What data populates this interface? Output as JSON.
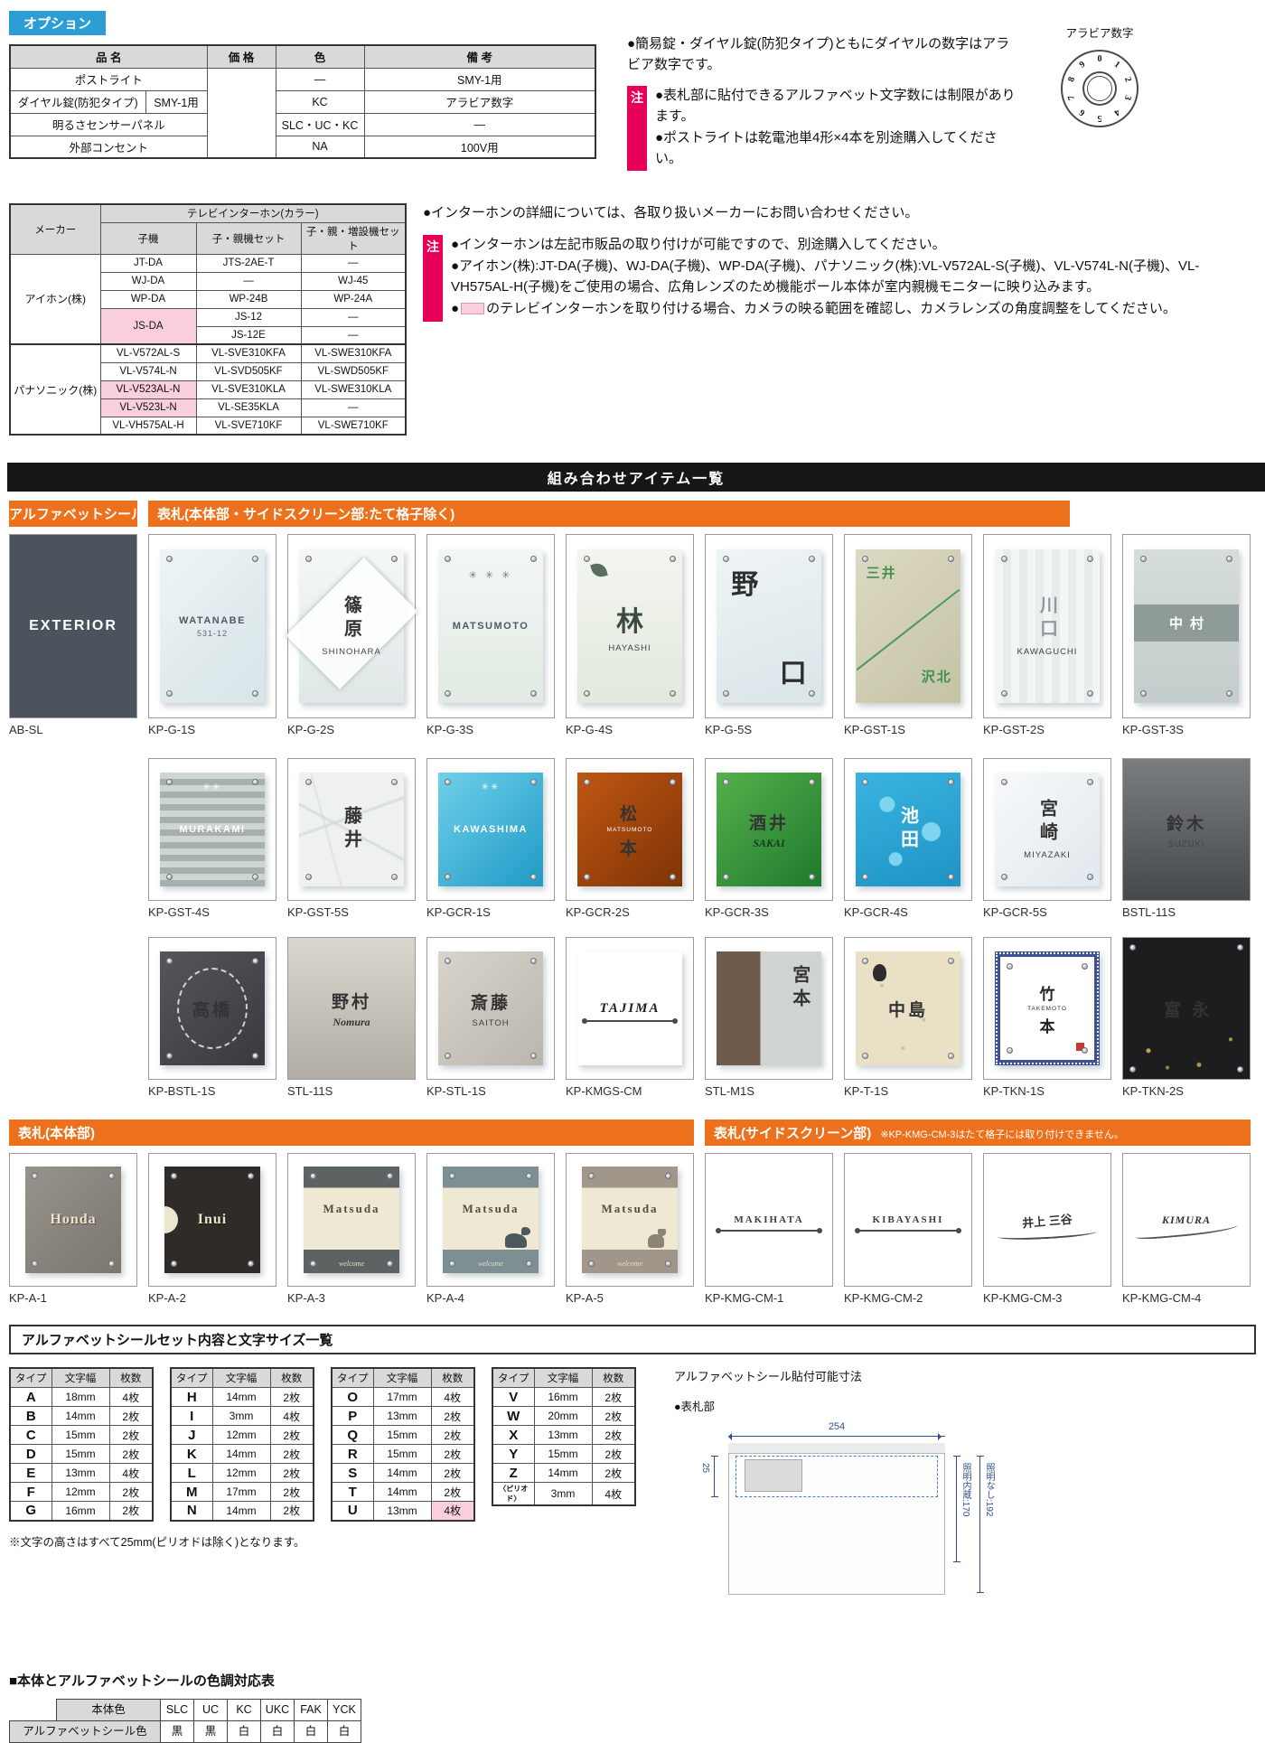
{
  "options": {
    "tag": "オプション",
    "table": {
      "headers": [
        {
          "t": "品 名",
          "cs": 2
        },
        {
          "t": "価 格"
        },
        {
          "t": "色"
        },
        {
          "t": "備 考"
        }
      ],
      "rows": [
        [
          {
            "t": "ポストライト",
            "cs": 2
          },
          {
            "t": "",
            "rs": 4
          },
          {
            "t": "―"
          },
          {
            "t": "SMY-1用"
          }
        ],
        [
          {
            "t": "ダイヤル錠(防犯タイプ)"
          },
          {
            "t": "SMY-1用"
          },
          {
            "t": "KC"
          },
          {
            "t": "アラビア数字"
          }
        ],
        [
          {
            "t": "明るさセンサーパネル",
            "cs": 2
          },
          {
            "t": "SLC・UC・KC"
          },
          {
            "t": "―"
          }
        ],
        [
          {
            "t": "外部コンセント",
            "cs": 2
          },
          {
            "t": "NA"
          },
          {
            "t": "100V用"
          }
        ]
      ]
    },
    "note1": "●簡易錠・ダイヤル錠(防犯タイプ)ともにダイヤルの数字はアラビア数字です。",
    "badge": "注",
    "notes": [
      {
        "text": "●表札部に貼付できるアルファベット文字数には制限があります。"
      },
      {
        "text": "●ポストライトは乾電池単4形×4本を別途購入してください。"
      }
    ],
    "dial_label": "アラビア数字",
    "dial_digits": [
      "0",
      "1",
      "2",
      "3",
      "4",
      "5",
      "6",
      "7",
      "8",
      "9"
    ]
  },
  "intercom": {
    "maker_header": "メーカー",
    "group_header": "テレビインターホン(カラー)",
    "sub_headers": [
      "子機",
      "子・親機セット",
      "子・親・増設機セット"
    ],
    "rows": [
      [
        {
          "t": "アイホン(株)",
          "rs": 5,
          "cls": "mkr"
        },
        {
          "t": "JT-DA"
        },
        {
          "t": "JTS-2AE-T"
        },
        {
          "t": "―"
        }
      ],
      [
        {
          "t": "WJ-DA"
        },
        {
          "t": "―"
        },
        {
          "t": "WJ-45"
        }
      ],
      [
        {
          "t": "WP-DA"
        },
        {
          "t": "WP-24B"
        },
        {
          "t": "WP-24A"
        }
      ],
      [
        {
          "t": "JS-DA",
          "rs": 2,
          "pink": true
        },
        {
          "t": "JS-12"
        },
        {
          "t": "―"
        }
      ],
      [
        {
          "t": "JS-12E"
        },
        {
          "t": "―"
        }
      ],
      [
        {
          "t": "パナソニック(株)",
          "rs": 5,
          "cls": "mkr",
          "sep": true
        },
        {
          "t": "VL-V572AL-S"
        },
        {
          "t": "VL-SVE310KFA"
        },
        {
          "t": "VL-SWE310KFA"
        }
      ],
      [
        {
          "t": "VL-V574L-N"
        },
        {
          "t": "VL-SVD505KF"
        },
        {
          "t": "VL-SWD505KF"
        }
      ],
      [
        {
          "t": "VL-V523AL-N",
          "pink": true
        },
        {
          "t": "VL-SVE310KLA"
        },
        {
          "t": "VL-SWE310KLA"
        }
      ],
      [
        {
          "t": "VL-V523L-N",
          "pink": true
        },
        {
          "t": "VL-SE35KLA"
        },
        {
          "t": "―"
        }
      ],
      [
        {
          "t": "VL-VH575AL-H"
        },
        {
          "t": "VL-SVE710KF"
        },
        {
          "t": "VL-SWE710KF"
        }
      ]
    ],
    "top_note": "●インターホンの詳細については、各取り扱いメーカーにお問い合わせください。",
    "badge": "注",
    "notes": [
      {
        "text": "●インターホンは左記市販品の取り付けが可能ですので、別途購入してください。"
      },
      {
        "text": "●アイホン(株):JT-DA(子機)、WJ-DA(子機)、WP-DA(子機)、パナソニック(株):VL-V572AL-S(子機)、VL-V574L-N(子機)、VL-VH575AL-H(子機)をご使用の場合、広角レンズのため機能ポール本体が室内親機モニターに映り込みます。"
      },
      {
        "bullet": "●",
        "swatch": true,
        "text": "のテレビインターホンを取り付ける場合、カメラの映る範囲を確認し、カメラレンズの角度調整をしてください。"
      }
    ]
  },
  "combo": {
    "banner": "組み合わせアイテム一覧",
    "seal_tag": "アルファベットシール",
    "plate_tag": "表札(本体部・サイドスクリーン部:たて格子除く)",
    "row1": [
      {
        "code": "AB-SL",
        "cls": "p-absl",
        "flat": true,
        "pins": 0,
        "lines": [
          {
            "t": "EXTERIOR",
            "c": "absl"
          }
        ]
      },
      {
        "code": "KP-G-1S",
        "cls": "p-g1",
        "pins": 4,
        "lines": [
          {
            "t": "WATANABE",
            "c": "nm"
          },
          {
            "t": "531-12",
            "c": "nm-sub"
          }
        ]
      },
      {
        "code": "KP-G-2S",
        "cls": "p-g2",
        "pins": 2,
        "deco": {
          "n": "diamond-pattern-icon",
          "cls": "deco-diamond"
        },
        "lines": [
          {
            "t": "篠原",
            "c": "nm-v c-dark"
          },
          {
            "t": "SHINOHARA",
            "c": "nm-sub2"
          }
        ]
      },
      {
        "code": "KP-G-3S",
        "cls": "p-g3",
        "pins": 4,
        "deco": {
          "n": "stars-motif-icon",
          "cls": "deco-stars",
          "g": "✳ ✳ ✳"
        },
        "lines": [
          {
            "t": "MATSUMOTO",
            "c": "nm"
          }
        ]
      },
      {
        "code": "KP-G-4S",
        "cls": "p-g4",
        "pins": 4,
        "deco": {
          "n": "leaf-motif-icon",
          "cls": "deco-leaf"
        },
        "lines": [
          {
            "t": "林",
            "c": "kanji-lg"
          },
          {
            "t": "HAYASHI",
            "c": "nm-sub2"
          }
        ]
      },
      {
        "code": "KP-G-5S",
        "cls": "p-g5",
        "pins": 4,
        "lines": [
          {
            "t": "野",
            "c": "kanji-lg abs-tl"
          },
          {
            "t": "口",
            "c": "kanji-lg abs-br"
          }
        ]
      },
      {
        "code": "KP-GST-1S",
        "cls": "p-gst1",
        "pins": 2,
        "deco": {
          "n": "diagonal-line",
          "cls": "deco-diag"
        },
        "lines": [
          {
            "t": "三井",
            "c": "green-name g-top"
          },
          {
            "t": "沢北",
            "c": "green-name g-bot"
          }
        ]
      },
      {
        "code": "KP-GST-2S",
        "cls": "p-gst2",
        "pins": 4,
        "lines": [
          {
            "t": "川口",
            "c": "nm-v c-gray"
          },
          {
            "t": "KAWAGUCHI",
            "c": "nm-sub2"
          }
        ]
      },
      {
        "code": "KP-GST-3S",
        "cls": "p-gst3",
        "pins": 4,
        "lines": [
          {
            "t": "中村",
            "c": "band-text"
          }
        ]
      }
    ],
    "row2": [
      {
        "code": "KP-GST-4S",
        "cls": "p-gst4",
        "pins": 4,
        "deco": {
          "n": "stars-motif-icon",
          "cls": "deco-stars-sm",
          "g": "✳✳"
        },
        "lines": [
          {
            "t": "MURAKAMI",
            "c": "nm c-white"
          }
        ]
      },
      {
        "code": "KP-GST-5S",
        "cls": "p-gst5",
        "pins": 4,
        "lines": [
          {
            "t": "藤井",
            "c": "nm-v c-dark"
          }
        ]
      },
      {
        "code": "KP-GCR-1S",
        "cls": "p-gcr1",
        "pins": 4,
        "deco": {
          "n": "stars-motif-icon",
          "cls": "deco-stars-sm",
          "g": "✳✳"
        },
        "lines": [
          {
            "t": "KAWASHIMA",
            "c": "nm c-white"
          }
        ]
      },
      {
        "code": "KP-GCR-2S",
        "cls": "p-gcr2",
        "pins": 4,
        "lines": [
          {
            "t": "松",
            "c": "kanji-md c-white"
          },
          {
            "t": "MATSUMOTO",
            "c": "nm-tiny c-white"
          },
          {
            "t": "本",
            "c": "kanji-md c-white"
          }
        ]
      },
      {
        "code": "KP-GCR-3S",
        "cls": "p-gcr3",
        "pins": 4,
        "lines": [
          {
            "t": "酒井",
            "c": "kanji-md c-deepgreen"
          },
          {
            "t": "SAKAI",
            "c": "script-sm c-deepgreen"
          }
        ]
      },
      {
        "code": "KP-GCR-4S",
        "cls": "p-gcr4",
        "pins": 4,
        "lines": [
          {
            "t": "池田",
            "c": "nm-v c-white"
          }
        ]
      },
      {
        "code": "KP-GCR-5S",
        "cls": "p-gcr5",
        "pins": 4,
        "lines": [
          {
            "t": "宮崎",
            "c": "nm-v c-dark"
          },
          {
            "t": "MIYAZAKI",
            "c": "nm-sub2"
          }
        ]
      },
      {
        "code": "BSTL-11S",
        "cls": "p-bstl11",
        "flat": true,
        "pins": 0,
        "lines": [
          {
            "t": "鈴木",
            "c": "kanji-md c-steel"
          },
          {
            "t": "SUZUKI",
            "c": "nm-sub2 c-steel"
          }
        ]
      }
    ],
    "row3": [
      {
        "code": "KP-BSTL-1S",
        "cls": "p-bstl1",
        "pins": 4,
        "deco": {
          "n": "wreath-motif-icon",
          "cls": "deco-wreath"
        },
        "lines": [
          {
            "t": "高橋",
            "c": "kanji-md c-white z1"
          }
        ]
      },
      {
        "code": "STL-11S",
        "cls": "p-stl11",
        "flat": true,
        "pins": 0,
        "lines": [
          {
            "t": "野村",
            "c": "kanji-md c-dark"
          },
          {
            "t": "Nomura",
            "c": "script-sm c-dark"
          }
        ]
      },
      {
        "code": "KP-STL-1S",
        "cls": "p-stl1",
        "pins": 4,
        "lines": [
          {
            "t": "斎藤",
            "c": "kanji-md c-dark"
          },
          {
            "t": "SAITOH",
            "c": "nm-sub2"
          }
        ]
      },
      {
        "code": "KP-KMGS-CM",
        "cls": "p-kmgs",
        "pins": 0,
        "deco": {
          "n": "iron-bar",
          "cls": "deco-bar"
        },
        "lines": [
          {
            "t": "TAJIMA",
            "c": "iron-name"
          }
        ]
      },
      {
        "code": "STL-M1S",
        "cls": "p-stlm1",
        "pins": 0,
        "lines": [
          {
            "t": "宮本",
            "c": "nm-v c-dark pos-right"
          }
        ]
      },
      {
        "code": "KP-T-1S",
        "cls": "p-t1",
        "pins": 4,
        "deco": {
          "n": "owl-motif-icon",
          "cls": "deco-owl"
        },
        "lines": [
          {
            "t": "中島",
            "c": "kanji-md c-dark"
          }
        ]
      },
      {
        "code": "KP-TKN-1S",
        "cls": "p-tkn1",
        "pins": 4,
        "deco": {
          "n": "seal-stamp-icon",
          "cls": "deco-seal"
        },
        "lines": [
          {
            "t": "竹",
            "c": "kanji-sm z1"
          },
          {
            "t": "TAKEMOTO",
            "c": "nm-tiny c-dark z1"
          },
          {
            "t": "本",
            "c": "kanji-sm z1"
          }
        ]
      },
      {
        "code": "KP-TKN-2S",
        "cls": "p-tkn2",
        "flat": true,
        "pins": 4,
        "deco": {
          "n": "gold-speckles",
          "cls": "deco-gold"
        },
        "lines": [
          {
            "t": "富永",
            "c": "kanji-md c-white sp-wide"
          }
        ]
      }
    ]
  },
  "plates2": {
    "body_tag": "表札(本体部)",
    "side_tag": "表札(サイドスクリーン部)",
    "side_note": "※KP-KMG-CM-3はたて格子には取り付けできません。",
    "row4": [
      {
        "code": "KP-A-1",
        "cls": "p-a1",
        "pins": 4,
        "lines": [
          {
            "t": "Honda",
            "c": "serif-name c-cream"
          }
        ]
      },
      {
        "code": "KP-A-2",
        "cls": "p-a2",
        "pins": 4,
        "deco": {
          "n": "half-moon-motif",
          "cls": "deco-half"
        },
        "lines": [
          {
            "t": "Inui",
            "c": "serif-name c-cream"
          }
        ]
      },
      {
        "code": "KP-A-3",
        "cls": "p-a3",
        "pins": 4,
        "lines": [
          {
            "t": "Matsuda",
            "c": "band-name"
          },
          {
            "t": "welcome",
            "c": "welcome-script"
          }
        ]
      },
      {
        "code": "KP-A-4",
        "cls": "p-a4",
        "pins": 4,
        "deco": {
          "n": "dog-silhouette-icon",
          "cls": "sil-dog"
        },
        "lines": [
          {
            "t": "Matsuda",
            "c": "band-name"
          },
          {
            "t": "welcome",
            "c": "welcome-script"
          }
        ]
      },
      {
        "code": "KP-A-5",
        "cls": "p-a5",
        "pins": 4,
        "deco": {
          "n": "cat-silhouette-icon",
          "cls": "sil-cat"
        },
        "lines": [
          {
            "t": "Matsuda",
            "c": "band-name"
          },
          {
            "t": "welcome",
            "c": "welcome-script"
          }
        ]
      },
      {
        "code": "KP-KMG-CM-1",
        "cls": "p-kmg",
        "pins": 0,
        "deco": {
          "n": "iron-bar",
          "cls": "deco-bar"
        },
        "lines": [
          {
            "t": "MAKIHATA",
            "c": "iron-sm"
          }
        ]
      },
      {
        "code": "KP-KMG-CM-2",
        "cls": "p-kmg",
        "pins": 0,
        "deco": {
          "n": "iron-bar",
          "cls": "deco-bar"
        },
        "lines": [
          {
            "t": "KIBAYASHI",
            "c": "iron-sm"
          }
        ]
      },
      {
        "code": "KP-KMG-CM-3",
        "cls": "p-kmg",
        "pins": 0,
        "deco": {
          "n": "iron-swoosh",
          "cls": "deco-swoosh"
        },
        "lines": [
          {
            "t": "井上 三谷",
            "c": "iron-jp"
          }
        ]
      },
      {
        "code": "KP-KMG-CM-4",
        "cls": "p-kmg",
        "pins": 0,
        "deco": {
          "n": "branch-swoosh",
          "cls": "deco-branch"
        },
        "lines": [
          {
            "t": "KIMURA",
            "c": "iron-it"
          }
        ]
      }
    ]
  },
  "sizes": {
    "title": "アルファベットシールセット内容と文字サイズ一覧",
    "col_headers": [
      "タイプ",
      "文字幅",
      "枚数"
    ],
    "tables": [
      [
        [
          "A",
          "18mm",
          "4枚"
        ],
        [
          "B",
          "14mm",
          "2枚"
        ],
        [
          "C",
          "15mm",
          "2枚"
        ],
        [
          "D",
          "15mm",
          "2枚"
        ],
        [
          "E",
          "13mm",
          "4枚"
        ],
        [
          "F",
          "12mm",
          "2枚"
        ],
        [
          "G",
          "16mm",
          "2枚"
        ]
      ],
      [
        [
          "H",
          "14mm",
          "2枚"
        ],
        [
          "I",
          "3mm",
          "4枚"
        ],
        [
          "J",
          "12mm",
          "2枚"
        ],
        [
          "K",
          "14mm",
          "2枚"
        ],
        [
          "L",
          "12mm",
          "2枚"
        ],
        [
          "M",
          "17mm",
          "2枚"
        ],
        [
          "N",
          "14mm",
          "2枚"
        ]
      ],
      [
        [
          "O",
          "17mm",
          "4枚"
        ],
        [
          "P",
          "13mm",
          "2枚"
        ],
        [
          "Q",
          "15mm",
          "2枚"
        ],
        [
          "R",
          "15mm",
          "2枚"
        ],
        [
          "S",
          "14mm",
          "2枚"
        ],
        [
          "T",
          "14mm",
          "2枚"
        ],
        [
          "U",
          "13mm",
          {
            "t": "4枚",
            "pink": true
          }
        ]
      ],
      [
        [
          "V",
          "16mm",
          "2枚"
        ],
        [
          "W",
          "20mm",
          "2枚"
        ],
        [
          "X",
          "13mm",
          "2枚"
        ],
        [
          "Y",
          "15mm",
          "2枚"
        ],
        [
          "Z",
          "14mm",
          "2枚"
        ],
        [
          "〈ピリオド〉",
          "3mm",
          "4枚"
        ]
      ]
    ],
    "footnote": "※文字の高さはすべて25mm(ピリオドは除く)となります。",
    "fitting_title": "アルファベットシール貼付可能寸法",
    "fitting_sub": "●表札部",
    "dims": {
      "width": "254",
      "inset": "25",
      "with_light": "照明内蔵:170",
      "without_light": "照明なし:192"
    }
  },
  "colors": {
    "title": "■本体とアルファベットシールの色調対応表",
    "row1_header": "本体色",
    "row1": [
      "SLC",
      "UC",
      "KC",
      "UKC",
      "FAK",
      "YCK"
    ],
    "row2_header": "アルファベットシール色",
    "row2": [
      "黒",
      "黒",
      "白",
      "白",
      "白",
      "白"
    ]
  },
  "theme": {
    "accent_blue": "#2d9ed3",
    "accent_orange": "#ed711d",
    "note_pink": "#e60057",
    "highlight_pink": "#f9cfdc",
    "banner_black": "#161616",
    "header_gray": "#d9d9d9"
  }
}
